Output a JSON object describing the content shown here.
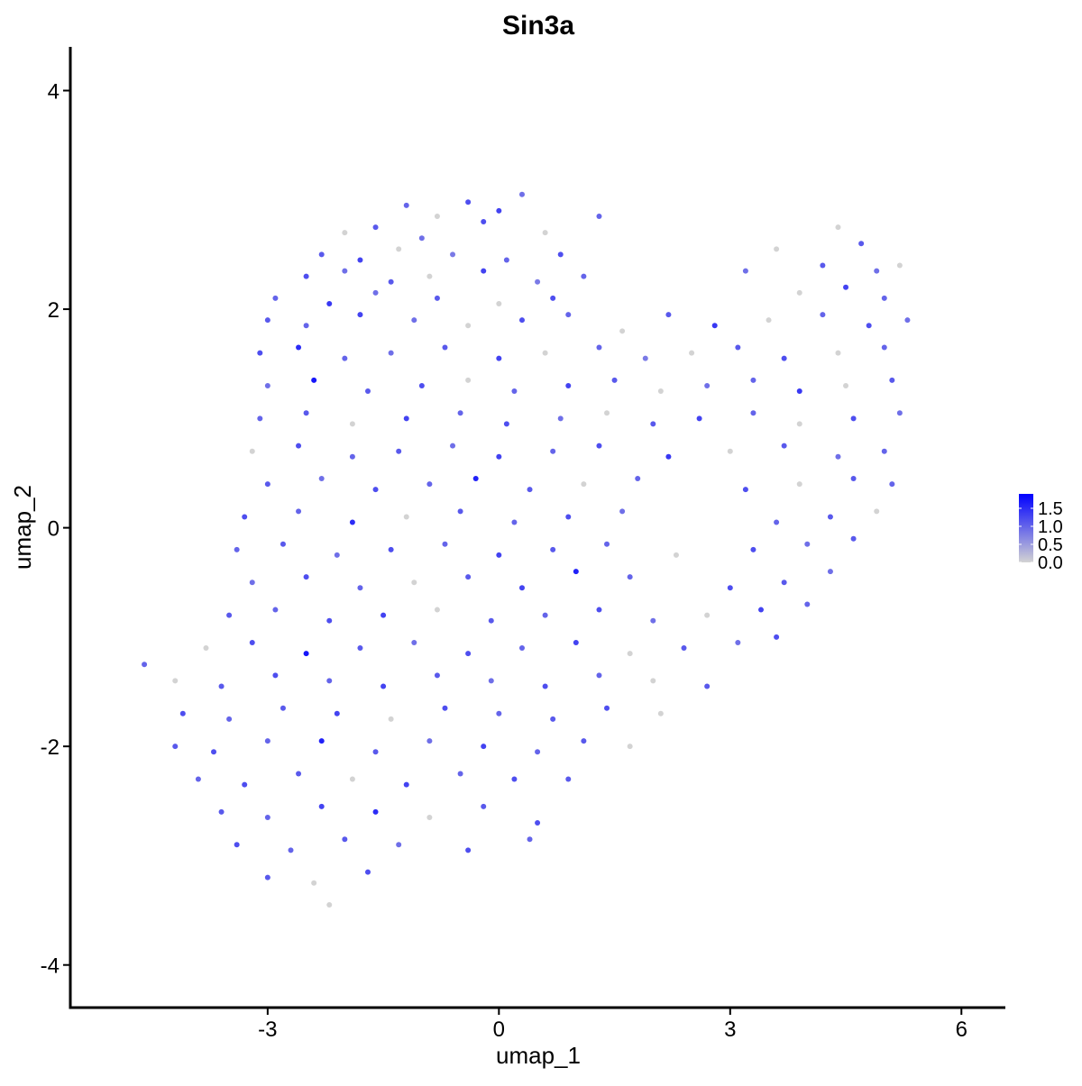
{
  "chart_data": {
    "type": "scatter",
    "title": "Sin3a",
    "x_label": "umap_1",
    "y_label": "umap_2",
    "xlim": [
      -5.56,
      6.57
    ],
    "ylim": [
      -4.39,
      4.4
    ],
    "xticks": [
      -3,
      0,
      3,
      6
    ],
    "yticks": [
      -4,
      -2,
      0,
      2,
      4
    ],
    "low_color": "#d3d3d3",
    "high_color": "#0000ff",
    "color_lim": [
      0,
      1.9
    ],
    "colorbar_ticks": [
      {
        "value": 0,
        "label": "0.0"
      },
      0.5,
      {
        "value": 1,
        "label": "1.0"
      },
      1.5
    ],
    "x": [
      -1.2,
      -0.8,
      -0.4,
      0.0,
      0.3,
      -2.0,
      -1.6,
      -1.0,
      -0.2,
      0.6,
      1.3,
      -2.3,
      -1.8,
      -1.3,
      -0.6,
      0.1,
      0.8,
      4.4,
      4.7,
      -2.5,
      -2.0,
      -1.4,
      -0.9,
      -0.2,
      0.5,
      1.1,
      3.6,
      4.2,
      4.9,
      5.2,
      -2.9,
      -2.2,
      -1.6,
      -0.8,
      0.0,
      0.7,
      3.2,
      3.9,
      4.5,
      5.0,
      -3.0,
      -2.5,
      -1.8,
      -1.1,
      -0.4,
      0.3,
      0.9,
      1.6,
      2.2,
      2.8,
      3.5,
      4.2,
      4.8,
      5.3,
      -3.1,
      -2.6,
      -2.0,
      -1.4,
      -0.7,
      0.0,
      0.6,
      1.3,
      1.9,
      2.5,
      3.1,
      3.7,
      4.4,
      5.0,
      -3.0,
      -2.4,
      -1.7,
      -1.0,
      -0.4,
      0.2,
      0.9,
      1.5,
      2.1,
      2.7,
      3.3,
      3.9,
      4.5,
      5.1,
      -3.1,
      -2.5,
      -1.9,
      -1.2,
      -0.5,
      0.1,
      0.8,
      1.4,
      2.0,
      2.6,
      3.3,
      3.9,
      4.6,
      5.2,
      -3.2,
      -2.6,
      -1.9,
      -1.3,
      -0.6,
      0.0,
      0.7,
      1.3,
      2.2,
      3.0,
      3.7,
      4.4,
      5.0,
      -3.0,
      -2.3,
      -1.6,
      -0.9,
      -0.3,
      0.4,
      1.1,
      1.8,
      3.2,
      3.9,
      4.6,
      5.1,
      -3.3,
      -2.6,
      -1.9,
      -1.2,
      -0.5,
      0.2,
      0.9,
      1.6,
      3.6,
      4.3,
      4.9,
      -3.4,
      -2.8,
      -2.1,
      -1.4,
      -0.7,
      0.0,
      0.7,
      1.4,
      2.3,
      3.3,
      4.0,
      4.6,
      -3.2,
      -2.5,
      -1.8,
      -1.1,
      -0.4,
      0.3,
      1.0,
      1.7,
      3.0,
      3.7,
      4.3,
      -3.5,
      -2.9,
      -2.2,
      -1.5,
      -0.8,
      -0.1,
      0.6,
      1.3,
      2.0,
      2.7,
      3.4,
      4.0,
      -4.6,
      -3.8,
      -3.2,
      -2.5,
      -1.8,
      -1.1,
      -0.4,
      0.3,
      1.0,
      1.7,
      2.4,
      3.1,
      3.6,
      -4.2,
      -3.6,
      -2.9,
      -2.2,
      -1.5,
      -0.8,
      -0.1,
      0.6,
      1.3,
      2.0,
      2.7,
      -4.1,
      -3.5,
      -2.8,
      -2.1,
      -1.4,
      -0.7,
      0.0,
      0.7,
      1.4,
      2.1,
      -4.2,
      -3.7,
      -3.0,
      -2.3,
      -1.6,
      -0.9,
      -0.2,
      0.5,
      1.1,
      1.7,
      -3.9,
      -3.3,
      -2.6,
      -1.9,
      -1.2,
      -0.5,
      0.2,
      0.9,
      -3.6,
      -3.0,
      -2.3,
      -1.6,
      -0.9,
      -0.2,
      0.5,
      -3.4,
      -2.7,
      -2.0,
      -1.3,
      -0.4,
      0.4,
      -3.0,
      -2.4,
      -1.7,
      -2.2
    ],
    "y": [
      2.95,
      2.85,
      2.98,
      2.9,
      3.05,
      2.7,
      2.75,
      2.65,
      2.8,
      2.7,
      2.85,
      2.5,
      2.45,
      2.55,
      2.5,
      2.45,
      2.5,
      2.75,
      2.6,
      2.3,
      2.35,
      2.25,
      2.3,
      2.35,
      2.25,
      2.3,
      2.55,
      2.4,
      2.35,
      2.4,
      2.1,
      2.05,
      2.15,
      2.1,
      2.05,
      2.1,
      2.35,
      2.15,
      2.2,
      2.1,
      1.9,
      1.85,
      1.95,
      1.9,
      1.85,
      1.9,
      1.95,
      1.8,
      1.95,
      1.85,
      1.9,
      1.95,
      1.85,
      1.9,
      1.6,
      1.65,
      1.55,
      1.6,
      1.65,
      1.55,
      1.6,
      1.65,
      1.55,
      1.6,
      1.65,
      1.55,
      1.6,
      1.65,
      1.3,
      1.35,
      1.25,
      1.3,
      1.35,
      1.25,
      1.3,
      1.35,
      1.25,
      1.3,
      1.35,
      1.25,
      1.3,
      1.35,
      1.0,
      1.05,
      0.95,
      1.0,
      1.05,
      0.95,
      1.0,
      1.05,
      0.95,
      1.0,
      1.05,
      0.95,
      1.0,
      1.05,
      0.7,
      0.75,
      0.65,
      0.7,
      0.75,
      0.65,
      0.7,
      0.75,
      0.65,
      0.7,
      0.75,
      0.65,
      0.7,
      0.4,
      0.45,
      0.35,
      0.4,
      0.45,
      0.35,
      0.4,
      0.45,
      0.35,
      0.4,
      0.45,
      0.4,
      0.1,
      0.15,
      0.05,
      0.1,
      0.15,
      0.05,
      0.1,
      0.15,
      0.05,
      0.1,
      0.15,
      -0.2,
      -0.15,
      -0.25,
      -0.2,
      -0.15,
      -0.25,
      -0.2,
      -0.15,
      -0.25,
      -0.2,
      -0.15,
      -0.1,
      -0.5,
      -0.45,
      -0.55,
      -0.5,
      -0.45,
      -0.55,
      -0.4,
      -0.45,
      -0.55,
      -0.5,
      -0.4,
      -0.8,
      -0.75,
      -0.85,
      -0.8,
      -0.75,
      -0.85,
      -0.8,
      -0.75,
      -0.85,
      -0.8,
      -0.75,
      -0.7,
      -1.25,
      -1.1,
      -1.05,
      -1.15,
      -1.1,
      -1.05,
      -1.15,
      -1.1,
      -1.05,
      -1.15,
      -1.1,
      -1.05,
      -1.0,
      -1.4,
      -1.45,
      -1.35,
      -1.4,
      -1.45,
      -1.35,
      -1.4,
      -1.45,
      -1.35,
      -1.4,
      -1.45,
      -1.7,
      -1.75,
      -1.65,
      -1.7,
      -1.75,
      -1.65,
      -1.7,
      -1.75,
      -1.65,
      -1.7,
      -2.0,
      -2.05,
      -1.95,
      -1.95,
      -2.05,
      -1.95,
      -2.0,
      -2.05,
      -1.95,
      -2.0,
      -2.3,
      -2.35,
      -2.25,
      -2.3,
      -2.35,
      -2.25,
      -2.3,
      -2.3,
      -2.6,
      -2.65,
      -2.55,
      -2.6,
      -2.65,
      -2.55,
      -2.7,
      -2.9,
      -2.95,
      -2.85,
      -2.9,
      -2.95,
      -2.85,
      -3.2,
      -3.25,
      -3.15,
      -3.45
    ],
    "values": [
      1.0,
      0,
      1.2,
      1.3,
      0.9,
      0,
      1.1,
      0.9,
      1.2,
      0,
      1.0,
      1.1,
      1.3,
      0,
      0.8,
      1.0,
      1.2,
      0,
      1.1,
      1.2,
      0.9,
      1.1,
      0,
      1.3,
      0.8,
      1.0,
      0,
      1.1,
      0.9,
      0,
      1.0,
      1.4,
      0.9,
      1.1,
      0,
      1.2,
      0.9,
      0,
      1.3,
      1.0,
      1.1,
      1.0,
      1.3,
      0.9,
      0,
      1.2,
      1.0,
      0,
      1.1,
      1.4,
      0,
      1.0,
      1.2,
      0.9,
      1.2,
      1.5,
      1.0,
      0.9,
      1.1,
      1.3,
      0,
      1.0,
      0.8,
      0,
      1.1,
      1.2,
      0,
      1.0,
      0.9,
      1.7,
      1.1,
      1.2,
      0,
      1.0,
      1.3,
      1.1,
      0,
      0.9,
      1.0,
      1.4,
      0,
      1.1,
      1.0,
      1.1,
      0,
      1.3,
      1.0,
      1.2,
      0.9,
      0,
      1.1,
      1.3,
      1.0,
      0,
      1.2,
      0.9,
      0,
      1.2,
      1.0,
      1.1,
      0.9,
      1.3,
      1.0,
      1.2,
      1.4,
      0,
      1.1,
      0.9,
      1.0,
      1.1,
      0.9,
      1.2,
      1.0,
      1.6,
      1.1,
      0,
      1.0,
      1.2,
      0,
      1.1,
      1.0,
      1.2,
      1.0,
      1.5,
      0,
      1.1,
      1.0,
      1.2,
      0.9,
      1.0,
      1.1,
      0,
      1.0,
      1.1,
      0.9,
      1.2,
      1.0,
      1.3,
      1.1,
      1.0,
      0,
      1.2,
      0.9,
      1.1,
      0.9,
      1.2,
      1.0,
      0,
      1.1,
      1.3,
      1.6,
      1.0,
      1.2,
      1.1,
      0.9,
      1.1,
      1.0,
      1.2,
      1.3,
      0,
      1.1,
      1.0,
      1.2,
      0.9,
      0,
      1.3,
      1.0,
      1.0,
      0,
      1.2,
      1.7,
      1.1,
      0.9,
      1.2,
      1.0,
      1.3,
      0,
      1.1,
      0.9,
      1.2,
      0,
      1.1,
      1.2,
      1.0,
      1.3,
      1.1,
      0.9,
      1.2,
      1.0,
      0,
      1.1,
      1.2,
      1.0,
      1.1,
      1.3,
      0,
      1.2,
      1.0,
      1.1,
      1.2,
      0,
      1.1,
      1.2,
      1.0,
      1.6,
      1.1,
      0.9,
      1.3,
      1.0,
      1.1,
      0,
      1.0,
      1.2,
      1.1,
      0,
      1.3,
      1.0,
      1.2,
      1.1,
      1.1,
      1.0,
      1.3,
      1.5,
      0,
      1.1,
      1.2,
      1.2,
      1.0,
      1.1,
      0.9,
      1.2,
      1.0,
      1.1,
      0,
      1.2,
      0
    ]
  }
}
